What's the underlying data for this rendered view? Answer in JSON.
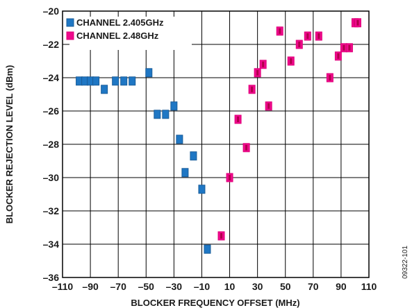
{
  "chart_data": {
    "type": "scatter",
    "title": "",
    "xlabel": "BLOCKER FREQUENCY OFFSET (MHz)",
    "ylabel": "BLOCKER REJECTION LEVEL (dBm)",
    "xlim": [
      -110,
      110
    ],
    "ylim": [
      -36,
      -20
    ],
    "x_ticks": [
      -110,
      -90,
      -70,
      -50,
      -30,
      -10,
      10,
      30,
      50,
      70,
      90,
      110
    ],
    "x_tick_labels": [
      "–110",
      "–90",
      "–70",
      "–50",
      "–30",
      "–10",
      "10",
      "30",
      "50",
      "70",
      "90",
      "110"
    ],
    "y_ticks": [
      -36,
      -34,
      -32,
      -30,
      -28,
      -26,
      -24,
      -22,
      -20
    ],
    "y_tick_labels": [
      "–36",
      "–34",
      "–32",
      "–30",
      "–28",
      "–26",
      "–24",
      "–22",
      "–20"
    ],
    "grid": true,
    "legend_position": "top-left",
    "series": [
      {
        "name": "CHANNEL 2.405GHz",
        "color": "#1f77c4",
        "points": [
          {
            "x": -98,
            "y": -24.2
          },
          {
            "x": -94,
            "y": -24.2
          },
          {
            "x": -90,
            "y": -24.2
          },
          {
            "x": -86,
            "y": -24.2
          },
          {
            "x": -80,
            "y": -24.7
          },
          {
            "x": -72,
            "y": -24.2
          },
          {
            "x": -66,
            "y": -24.2
          },
          {
            "x": -60,
            "y": -24.2
          },
          {
            "x": -48,
            "y": -23.7
          },
          {
            "x": -42,
            "y": -26.2
          },
          {
            "x": -36,
            "y": -26.2
          },
          {
            "x": -30,
            "y": -25.7
          },
          {
            "x": -26,
            "y": -27.7
          },
          {
            "x": -22,
            "y": -29.7
          },
          {
            "x": -16,
            "y": -28.7
          },
          {
            "x": -10,
            "y": -30.7
          },
          {
            "x": -6,
            "y": -34.3
          }
        ]
      },
      {
        "name": "CHANNEL 2.48GHz",
        "color": "#ee0a8c",
        "points": [
          {
            "x": 4,
            "y": -33.5
          },
          {
            "x": 10,
            "y": -30
          },
          {
            "x": 16,
            "y": -26.5
          },
          {
            "x": 22,
            "y": -28.2
          },
          {
            "x": 26,
            "y": -24.7
          },
          {
            "x": 30,
            "y": -23.7
          },
          {
            "x": 34,
            "y": -23.2
          },
          {
            "x": 38,
            "y": -25.7
          },
          {
            "x": 46,
            "y": -21.2
          },
          {
            "x": 54,
            "y": -23
          },
          {
            "x": 60,
            "y": -22
          },
          {
            "x": 66,
            "y": -21.5
          },
          {
            "x": 74,
            "y": -21.5
          },
          {
            "x": 82,
            "y": -24
          },
          {
            "x": 88,
            "y": -22.7
          },
          {
            "x": 92,
            "y": -22.2
          },
          {
            "x": 96,
            "y": -22.2
          },
          {
            "x": 100,
            "y": -20.7
          },
          {
            "x": 102,
            "y": -20.7
          }
        ]
      }
    ]
  },
  "figure_id": "09322-101"
}
